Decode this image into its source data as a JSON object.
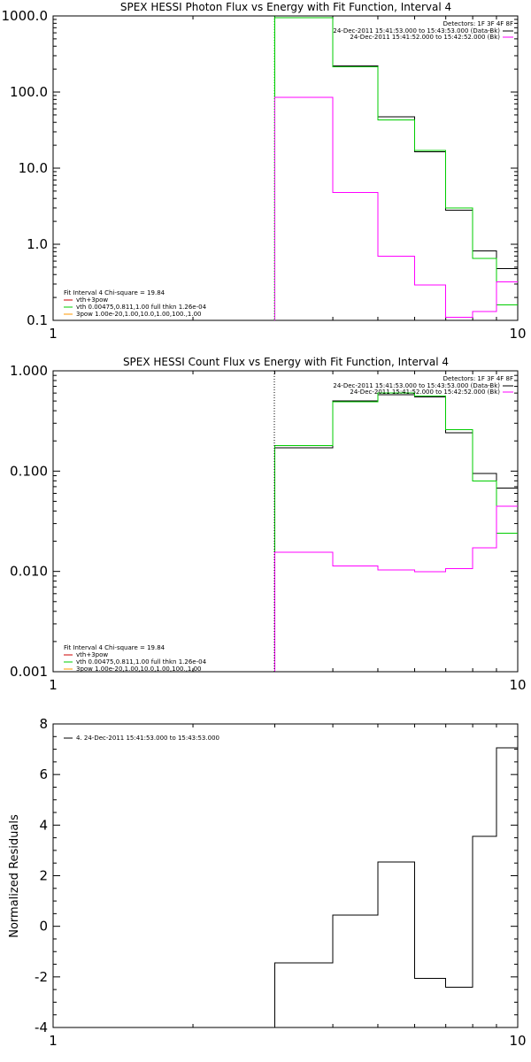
{
  "chart_data": [
    {
      "type": "line",
      "title": "SPEX HESSI Photon Flux vs Energy with Fit Function, Interval 4",
      "x_scale": "log",
      "y_scale": "log",
      "xlim": [
        1,
        10
      ],
      "ylim": [
        0.1,
        1000
      ],
      "x_ticks": [
        1,
        10
      ],
      "x_tick_labels": [
        "1",
        "10"
      ],
      "y_ticks": [
        0.1,
        1,
        10,
        100,
        1000
      ],
      "y_tick_labels": [
        "0.1",
        "1.0",
        "10.0",
        "100.0",
        "1000.0"
      ],
      "legend_upper": {
        "header": "Detectors: 1F 3F 4F 8F",
        "entries": [
          {
            "text": "24-Dec-2011 15:41:53.000 to 15:43:53.000 (Data-Bk)",
            "color": "#000000"
          },
          {
            "text": "24-Dec-2011 15:41:52.000 to 15:42:52.000 (Bk)",
            "color": "#ff00ff"
          }
        ]
      },
      "legend_lower": {
        "header": "Fit Interval  4   Chi-square = 19.84",
        "entries": [
          {
            "text": "vth+3pow",
            "color": "#cc0000"
          },
          {
            "text": "vth 0.00475,0.811,1.00  full thkn 1.26e-04",
            "color": "#00cc00"
          },
          {
            "text": "3pow 1.00e-20,1.00,10.0,1.00,100.,1.00",
            "color": "#ff9900"
          }
        ]
      },
      "series": [
        {
          "label": "black",
          "color": "#000000",
          "edges": [
            3,
            4,
            5,
            6,
            7,
            8,
            9,
            10
          ],
          "values": [
            1000,
            220,
            47,
            16.5,
            2.8,
            0.82,
            0.48
          ]
        },
        {
          "label": "green",
          "color": "#00cc00",
          "edges": [
            3,
            4,
            5,
            6,
            7,
            8,
            9,
            10
          ],
          "values": [
            950,
            215,
            43,
            17,
            3.0,
            0.65,
            0.16
          ]
        },
        {
          "label": "magenta",
          "color": "#ff00ff",
          "edges": [
            3,
            4,
            5,
            6,
            7,
            8,
            9,
            10
          ],
          "values": [
            85,
            4.8,
            0.7,
            0.29,
            0.11,
            0.13,
            0.32
          ]
        }
      ]
    },
    {
      "type": "line",
      "title": "SPEX HESSI Count Flux vs Energy with Fit Function, Interval 4",
      "x_scale": "log",
      "y_scale": "log",
      "xlim": [
        1,
        10
      ],
      "ylim": [
        0.001,
        1
      ],
      "x_ticks": [
        1,
        10
      ],
      "x_tick_labels": [
        "1",
        "10"
      ],
      "y_ticks": [
        0.001,
        0.01,
        0.1,
        1
      ],
      "y_tick_labels": [
        "0.001",
        "0.010",
        "0.100",
        "1.000"
      ],
      "legend_upper": {
        "header": "Detectors: 1F 3F 4F 8F",
        "entries": [
          {
            "text": "24-Dec-2011 15:41:53.000 to 15:43:53.000 (Data-Bk)",
            "color": "#000000"
          },
          {
            "text": "24-Dec-2011 15:41:52.000 to 15:42:52.000 (Bk)",
            "color": "#ff00ff"
          }
        ]
      },
      "legend_lower": {
        "header": "Fit Interval  4   Chi-square = 19.84",
        "entries": [
          {
            "text": "vth+3pow",
            "color": "#cc0000"
          },
          {
            "text": "vth 0.00475,0.811,1.00  full thkn 1.26e-04",
            "color": "#00cc00"
          },
          {
            "text": "3pow 1.00e-20,1.00,10.0,1.00,100.,1.00",
            "color": "#ff9900"
          }
        ]
      },
      "series": [
        {
          "label": "black",
          "color": "#000000",
          "edges": [
            3,
            4,
            5,
            6,
            7,
            8,
            9,
            10
          ],
          "values": [
            0.17,
            0.5,
            0.58,
            0.55,
            0.24,
            0.095,
            0.068
          ]
        },
        {
          "label": "green",
          "color": "#00cc00",
          "edges": [
            3,
            4,
            5,
            6,
            7,
            8,
            9,
            10
          ],
          "values": [
            0.18,
            0.49,
            0.6,
            0.56,
            0.26,
            0.08,
            0.024
          ]
        },
        {
          "label": "magenta",
          "color": "#ff00ff",
          "edges": [
            3,
            4,
            5,
            6,
            7,
            8,
            9,
            10
          ],
          "values": [
            0.0155,
            0.0113,
            0.0103,
            0.0099,
            0.0107,
            0.0172,
            0.0445
          ]
        }
      ]
    },
    {
      "type": "line",
      "title": "",
      "x_scale": "log",
      "y_scale": "linear",
      "xlim": [
        1,
        10
      ],
      "ylim": [
        -4,
        8
      ],
      "x_ticks": [
        1,
        10
      ],
      "x_tick_labels": [
        "1",
        "10"
      ],
      "y_ticks": [
        -4,
        -2,
        0,
        2,
        4,
        6,
        8
      ],
      "y_tick_labels": [
        "-4",
        "-2",
        "0",
        "2",
        "4",
        "6",
        "8"
      ],
      "ylabel": "Normalized Residuals",
      "legend": {
        "entries": [
          {
            "text": "4. 24-Dec-2011 15:41:53.000 to 15:43:53.000",
            "color": "#000000"
          }
        ]
      },
      "series": [
        {
          "label": "black",
          "color": "#000000",
          "edges": [
            3,
            4,
            5,
            6,
            7,
            8,
            9,
            10
          ],
          "values": [
            -1.45,
            0.45,
            2.55,
            -2.05,
            -2.4,
            3.55,
            7.05
          ]
        }
      ]
    }
  ]
}
